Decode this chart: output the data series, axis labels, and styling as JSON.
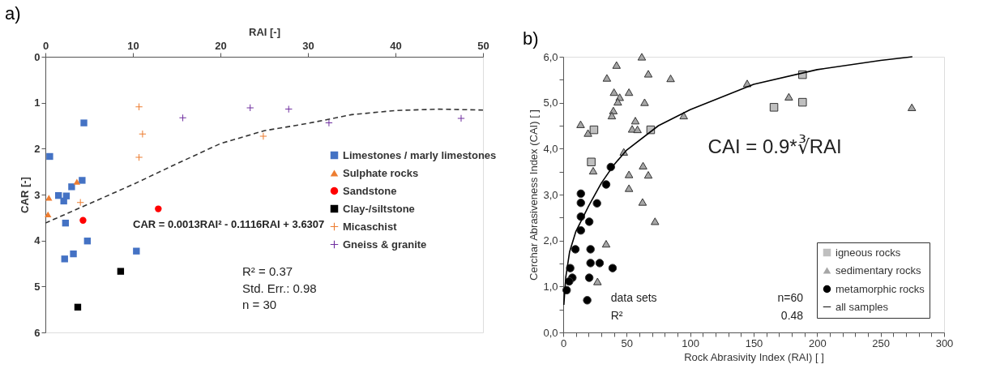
{
  "chart_data": [
    {
      "type": "scatter",
      "title": "a)",
      "xlabel": "RAI [-]",
      "ylabel": "CAR [-]",
      "xlim": [
        0,
        50
      ],
      "xticks": [
        0,
        10,
        20,
        30,
        40,
        50
      ],
      "ylim": [
        6,
        0
      ],
      "yticks": [
        0,
        1,
        2,
        3,
        4,
        5,
        6
      ],
      "legend": "right",
      "grid": false,
      "annotations": [
        "CAR = 0.0013RAI² - 0.1116RAI + 3.6307",
        "R² = 0.37",
        "Std. Err.: 0.98",
        "n = 30"
      ],
      "series": [
        {
          "name": "Limestones / marly limestones",
          "color": "#4472c4",
          "marker": "square",
          "x": [
            4.4,
            0.5,
            4.2,
            3.0,
            1.5,
            2.4,
            2.1,
            2.3,
            4.8,
            3.2,
            2.2,
            10.4
          ],
          "values": [
            1.44,
            2.17,
            2.69,
            2.83,
            3.02,
            3.03,
            3.14,
            3.62,
            4.01,
            4.29,
            4.4,
            4.23
          ]
        },
        {
          "name": "Sulphate rocks",
          "color": "#ed7d31",
          "marker": "triangle",
          "x": [
            0.4,
            0.3,
            3.6
          ],
          "values": [
            3.07,
            3.43,
            2.72
          ]
        },
        {
          "name": "Sandstone",
          "color": "#ff0000",
          "marker": "circle",
          "x": [
            4.3,
            12.9
          ],
          "values": [
            3.56,
            3.31
          ]
        },
        {
          "name": "Clay-/siltstone",
          "color": "#000000",
          "marker": "square",
          "x": [
            8.6,
            3.7
          ],
          "values": [
            4.67,
            5.45
          ]
        },
        {
          "name": "Micaschist",
          "color": "#ed7d31",
          "marker": "cross",
          "x": [
            10.7,
            11.1,
            10.7,
            4.0,
            24.9
          ],
          "values": [
            1.09,
            1.68,
            2.19,
            3.17,
            1.73
          ]
        },
        {
          "name": "Gneiss & granite",
          "color": "#7030a0",
          "marker": "cross",
          "x": [
            15.7,
            23.4,
            27.8,
            32.4,
            47.5
          ],
          "values": [
            1.33,
            1.11,
            1.14,
            1.44,
            1.34
          ]
        },
        {
          "type": "line",
          "color": "#333333",
          "marker": "none",
          "line_style": "dashed",
          "x": [
            0,
            5,
            10,
            15,
            20,
            25,
            30,
            35,
            40,
            45,
            50
          ],
          "values": [
            3.62,
            3.2,
            2.78,
            2.33,
            1.89,
            1.61,
            1.45,
            1.26,
            1.17,
            1.14,
            1.16
          ]
        }
      ]
    },
    {
      "type": "scatter",
      "title": "b)",
      "xlabel": "Rock Abrasivity Index (RAI) [ ]",
      "ylabel": "Cerchar Abrasiveness Index (CAI) [ ]",
      "xlim": [
        0,
        300
      ],
      "xticks": [
        0,
        {
          "value": 10,
          "label": null
        },
        {
          "value": 20,
          "label": null
        },
        {
          "value": 30,
          "label": null
        },
        {
          "value": 40,
          "label": null
        },
        50,
        {
          "value": 60,
          "label": null
        },
        {
          "value": 70,
          "label": null
        },
        {
          "value": 80,
          "label": null
        },
        {
          "value": 90,
          "label": null
        },
        100,
        {
          "value": 110,
          "label": null
        },
        {
          "value": 120,
          "label": null
        },
        {
          "value": 130,
          "label": null
        },
        {
          "value": 140,
          "label": null
        },
        150,
        {
          "value": 160,
          "label": null
        },
        {
          "value": 170,
          "label": null
        },
        {
          "value": 180,
          "label": null
        },
        {
          "value": 190,
          "label": null
        },
        200,
        {
          "value": 210,
          "label": null
        },
        {
          "value": 220,
          "label": null
        },
        {
          "value": 230,
          "label": null
        },
        {
          "value": 240,
          "label": null
        },
        250,
        {
          "value": 260,
          "label": null
        },
        {
          "value": 270,
          "label": null
        },
        {
          "value": 280,
          "label": null
        },
        {
          "value": 290,
          "label": null
        },
        300
      ],
      "ylim": [
        0,
        6
      ],
      "yticks": [
        {
          "value": 0,
          "label": "0,0"
        },
        {
          "value": 0.5,
          "label": null
        },
        {
          "value": 1,
          "label": "1,0"
        },
        {
          "value": 1.5,
          "label": null
        },
        {
          "value": 2,
          "label": "2,0"
        },
        {
          "value": 2.5,
          "label": null
        },
        {
          "value": 3,
          "label": "3,0"
        },
        {
          "value": 3.5,
          "label": null
        },
        {
          "value": 4,
          "label": "4,0"
        },
        {
          "value": 4.5,
          "label": null
        },
        {
          "value": 5,
          "label": "5,0"
        },
        {
          "value": 5.5,
          "label": null
        },
        {
          "value": 6,
          "label": "6,0"
        }
      ],
      "legend": "bottom right",
      "grid": false,
      "annotations": [
        "CAI = 0.9*∛RAI",
        "data sets",
        "n=60",
        "R²",
        "0.48"
      ],
      "series": [
        {
          "name": "igneous rocks",
          "color": "#bfbfbf",
          "marker": "square",
          "x": [
            24.2,
            22.1,
            68.9,
            166,
            188.5,
            188.5
          ],
          "values": [
            4.41,
            3.71,
            4.41,
            4.9,
            5.61,
            5.01
          ]
        },
        {
          "name": "sedimentary rocks",
          "color": "#a6a6a6",
          "marker": "triangle",
          "x": [
            61.9,
            42,
            67,
            34.4,
            84.6,
            144.9,
            40,
            51.8,
            44.5,
            43,
            64.1,
            39.5,
            38.3,
            94.9,
            56.8,
            13.7,
            19.5,
            54.3,
            58.5,
            47.7,
            23.6,
            62.9,
            51.8,
            67,
            51.8,
            62.5,
            72.3,
            33.8,
            27,
            177.7,
            274.6
          ],
          "values": [
            6.0,
            5.82,
            5.63,
            5.54,
            5.53,
            5.42,
            5.23,
            5.23,
            5.12,
            5.02,
            5.01,
            4.83,
            4.72,
            4.72,
            4.61,
            4.53,
            4.34,
            4.43,
            4.42,
            3.93,
            3.52,
            3.63,
            3.44,
            3.43,
            3.14,
            2.84,
            2.42,
            1.93,
            1.11,
            5.13,
            4.9
          ]
        },
        {
          "name": "metamorphic rocks",
          "color": "#000000",
          "marker": "circle",
          "x": [
            37.5,
            33.8,
            13.9,
            13.9,
            26.6,
            13.9,
            20.5,
            13.9,
            9.6,
            21.5,
            21.5,
            28.7,
            38.9,
            5.5,
            7.2,
            4.7,
            20.5,
            2.7,
            18.9
          ],
          "values": [
            3.6,
            3.22,
            3.02,
            2.82,
            2.81,
            2.52,
            2.41,
            2.22,
            1.81,
            1.81,
            1.51,
            1.51,
            1.4,
            1.4,
            1.19,
            1.11,
            1.19,
            0.92,
            0.7
          ]
        },
        {
          "type": "line",
          "name": "all samples",
          "color": "#000000",
          "marker": "none",
          "line_style": "solid",
          "x": [
            0.5,
            2,
            5,
            10,
            20,
            30,
            40,
            50,
            75,
            100,
            150,
            200,
            250,
            275
          ],
          "values": [
            0.6,
            1.2,
            1.75,
            2.2,
            2.75,
            3.25,
            3.65,
            3.97,
            4.5,
            4.85,
            5.4,
            5.72,
            5.92,
            6.0
          ]
        }
      ]
    }
  ]
}
